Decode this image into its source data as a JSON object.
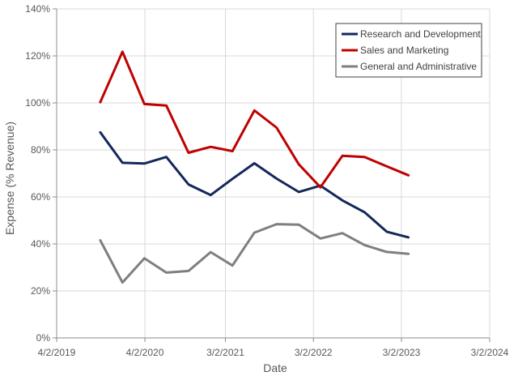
{
  "chart_data": {
    "type": "line",
    "xlabel": "Date",
    "ylabel": "Expense (% Revenue)",
    "x_ticks": [
      "4/2/2019",
      "4/2/2020",
      "3/2/2021",
      "3/2/2022",
      "3/2/2023",
      "3/2/2024"
    ],
    "xlim": [
      "2019-04-02",
      "2024-03-02"
    ],
    "y_ticks": [
      "0%",
      "20%",
      "40%",
      "60%",
      "80%",
      "100%",
      "120%",
      "140%"
    ],
    "ylim": [
      0,
      140
    ],
    "grid": "horizontal and vertical",
    "legend_position": "top-right",
    "x": [
      "2019-09-30",
      "2019-12-31",
      "2020-03-31",
      "2020-06-30",
      "2020-09-30",
      "2020-12-31",
      "2021-03-31",
      "2021-06-30",
      "2021-09-30",
      "2021-12-31",
      "2022-03-31",
      "2022-06-30",
      "2022-09-30",
      "2022-12-31",
      "2023-03-31"
    ],
    "series": [
      {
        "name": "Research and Development",
        "color": "#14285a",
        "values": [
          87.5,
          74.5,
          74.2,
          77,
          65.3,
          60.8,
          67.7,
          74.3,
          67.8,
          62.1,
          64.8,
          58.5,
          53.5,
          45.2,
          42.8
        ]
      },
      {
        "name": "Sales and Marketing",
        "color": "#c00000",
        "values": [
          100.3,
          121.8,
          99.5,
          98.9,
          78.8,
          81.3,
          79.5,
          96.8,
          89.5,
          73.9,
          64.1,
          77.5,
          77.0,
          73.0,
          69.2
        ]
      },
      {
        "name": "General and Administrative",
        "color": "#7f7f7f",
        "values": [
          41.5,
          23.6,
          33.9,
          27.8,
          28.5,
          36.5,
          30.8,
          44.8,
          48.4,
          48.2,
          42.3,
          44.6,
          39.5,
          36.6,
          35.8
        ]
      }
    ]
  }
}
